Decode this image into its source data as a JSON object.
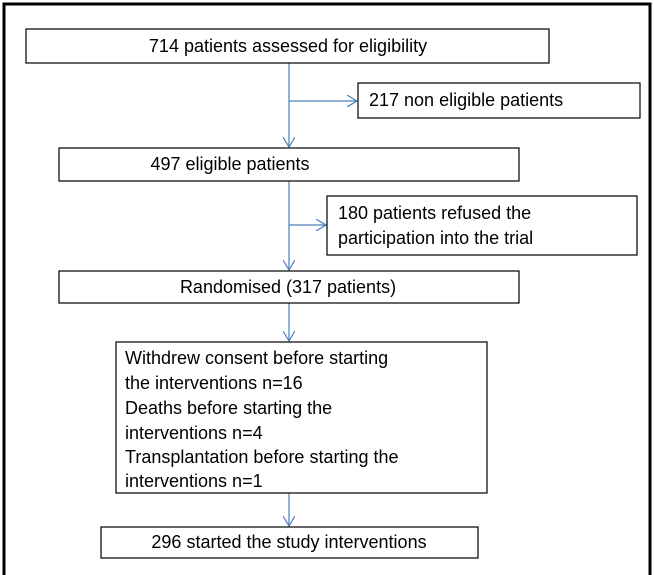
{
  "nodes": [
    {
      "lines": [
        "714 patients assessed for eligibility"
      ]
    },
    {
      "lines": [
        "217 non eligible patients"
      ]
    },
    {
      "lines": [
        "497 eligible patients"
      ]
    },
    {
      "lines": [
        "180 patients refused the",
        "participation into the trial"
      ]
    },
    {
      "lines": [
        "Randomised (317 patients)"
      ]
    },
    {
      "lines": [
        "Withdrew consent before starting",
        "the interventions n=16",
        "Deaths before starting the",
        "interventions n=4",
        "Transplantation before starting the",
        "interventions n=1"
      ]
    },
    {
      "lines": [
        "296 started the study interventions"
      ]
    }
  ]
}
